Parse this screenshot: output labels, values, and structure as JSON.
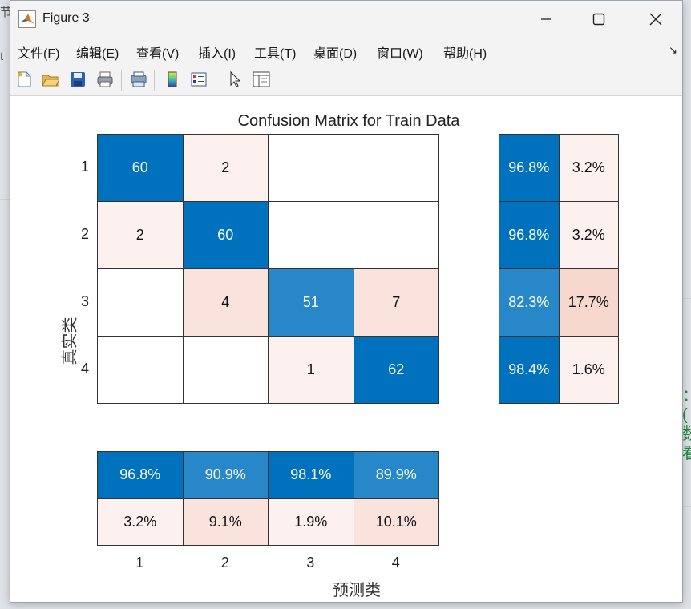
{
  "background": {
    "frag_top": "节",
    "frag_mid": "t",
    "green_lines": [
      "：",
      "(",
      "数",
      "看"
    ]
  },
  "window": {
    "title": "Figure 3",
    "controls": {
      "minimize": "minimize-icon",
      "maximize": "maximize-icon",
      "close": "close-icon"
    }
  },
  "menu": {
    "items": [
      "文件(F)",
      "编辑(E)",
      "查看(V)",
      "插入(I)",
      "工具(T)",
      "桌面(D)",
      "窗口(W)",
      "帮助(H)"
    ],
    "collapse_glyph": "↘"
  },
  "toolbar": {
    "buttons": [
      "new-figure-icon",
      "open-icon",
      "save-icon",
      "print-icon",
      "print-preview-icon",
      "colorbar-icon",
      "legend-icon",
      "pointer-icon",
      "property-editor-icon"
    ]
  },
  "colors": {
    "blue_strong": "#0072bd",
    "blue_mid": "#2787c9",
    "pink_light": "#fcf1ee",
    "pink_mid": "#f9e3dc",
    "pink_strong": "#f7d8ce",
    "white": "#ffffff"
  },
  "plot": {
    "title": "Confusion Matrix for Train Data",
    "ylabel": "真实类",
    "xlabel": "预测类",
    "row_ticks": [
      "1",
      "2",
      "3",
      "4"
    ],
    "col_ticks": [
      "1",
      "2",
      "3",
      "4"
    ],
    "matrix": [
      [
        "60",
        "2",
        "",
        ""
      ],
      [
        "2",
        "60",
        "",
        ""
      ],
      [
        "",
        "4",
        "51",
        "7"
      ],
      [
        "",
        "",
        "1",
        "62"
      ]
    ],
    "row_summary": [
      [
        "96.8%",
        "3.2%"
      ],
      [
        "96.8%",
        "3.2%"
      ],
      [
        "82.3%",
        "17.7%"
      ],
      [
        "98.4%",
        "1.6%"
      ]
    ],
    "col_summary": {
      "correct": [
        "96.8%",
        "90.9%",
        "98.1%",
        "89.9%"
      ],
      "incorrect": [
        "3.2%",
        "9.1%",
        "1.9%",
        "10.1%"
      ]
    }
  }
}
